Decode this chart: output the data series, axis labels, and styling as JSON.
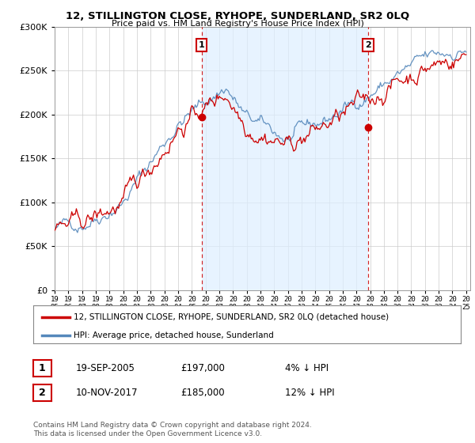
{
  "title": "12, STILLINGTON CLOSE, RYHOPE, SUNDERLAND, SR2 0LQ",
  "subtitle": "Price paid vs. HM Land Registry's House Price Index (HPI)",
  "legend_line1": "12, STILLINGTON CLOSE, RYHOPE, SUNDERLAND, SR2 0LQ (detached house)",
  "legend_line2": "HPI: Average price, detached house, Sunderland",
  "annotation1_date": "19-SEP-2005",
  "annotation1_price": "£197,000",
  "annotation1_hpi": "4% ↓ HPI",
  "annotation2_date": "10-NOV-2017",
  "annotation2_price": "£185,000",
  "annotation2_hpi": "12% ↓ HPI",
  "footer": "Contains HM Land Registry data © Crown copyright and database right 2024.\nThis data is licensed under the Open Government Licence v3.0.",
  "hpi_color": "#5588bb",
  "price_color": "#cc0000",
  "shade_color": "#ddeeff",
  "background_color": "#ffffff",
  "ylim": [
    0,
    300000
  ],
  "yticks": [
    0,
    50000,
    100000,
    150000,
    200000,
    250000,
    300000
  ],
  "sale1_year": 2005.72,
  "sale1_price": 197000,
  "sale2_year": 2017.86,
  "sale2_price": 185000
}
